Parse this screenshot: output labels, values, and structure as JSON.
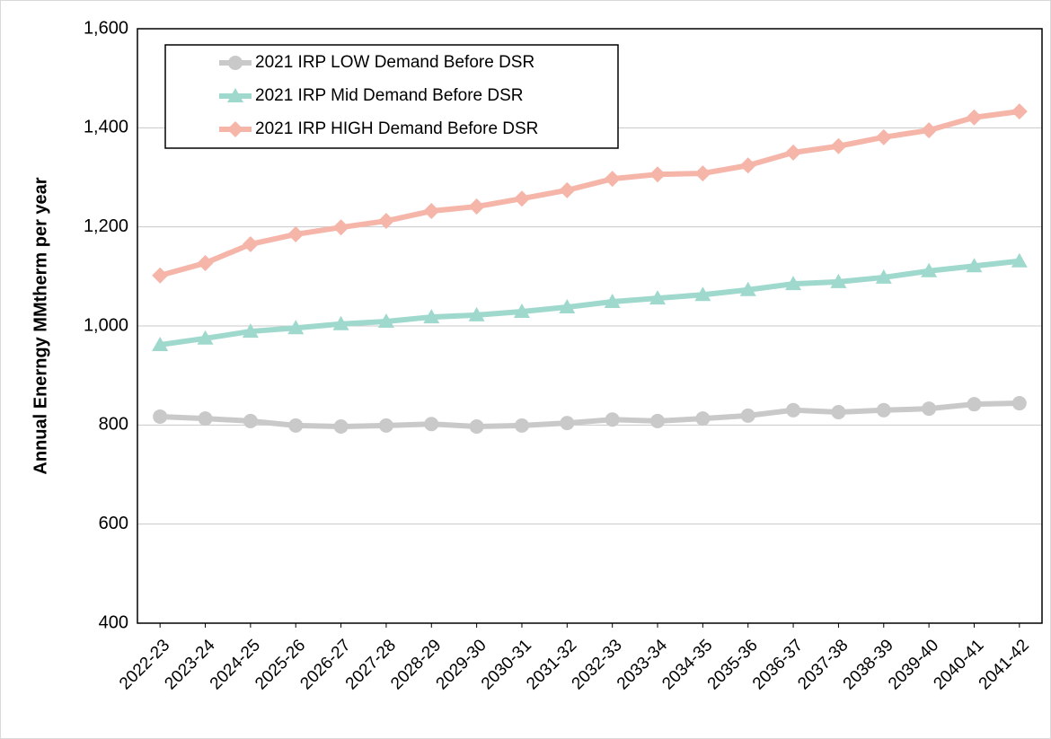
{
  "chart_data": {
    "type": "line",
    "y_label": "Annual Enerngy MMtherm per year",
    "categories": [
      "2022-23",
      "2023-24",
      "2024-25",
      "2025-26",
      "2026-27",
      "2027-28",
      "2028-29",
      "2029-30",
      "2030-31",
      "2031-32",
      "2032-33",
      "2033-34",
      "2034-35",
      "2035-36",
      "2036-37",
      "2037-38",
      "2038-39",
      "2039-40",
      "2040-41",
      "2041-42"
    ],
    "series": [
      {
        "name": "2021 IRP LOW Demand Before DSR",
        "color": "#c9c9c9",
        "marker": "circle",
        "values": [
          817,
          813,
          808,
          799,
          797,
          799,
          802,
          797,
          799,
          804,
          811,
          808,
          813,
          819,
          830,
          826,
          830,
          833,
          842,
          844
        ]
      },
      {
        "name": "2021 IRP Mid Demand Before DSR",
        "color": "#9fd9cd",
        "marker": "triangle",
        "values": [
          962,
          975,
          989,
          996,
          1004,
          1009,
          1018,
          1022,
          1029,
          1038,
          1049,
          1056,
          1063,
          1073,
          1085,
          1089,
          1098,
          1111,
          1121,
          1131
        ]
      },
      {
        "name": "2021 IRP HIGH Demand Before DSR",
        "color": "#f5b5a9",
        "marker": "diamond",
        "values": [
          1102,
          1127,
          1165,
          1185,
          1199,
          1212,
          1232,
          1241,
          1257,
          1274,
          1297,
          1306,
          1308,
          1324,
          1350,
          1363,
          1381,
          1395,
          1421,
          1433
        ]
      }
    ],
    "ylim": [
      400,
      1600
    ],
    "yticks": [
      400,
      600,
      800,
      {
        "value": 1000,
        "label": "1,000"
      },
      {
        "value": 1200,
        "label": "1,200"
      },
      {
        "value": 1400,
        "label": "1,400"
      },
      {
        "value": 1600,
        "label": "1,600"
      }
    ],
    "grid": true,
    "legend": "top-left"
  }
}
